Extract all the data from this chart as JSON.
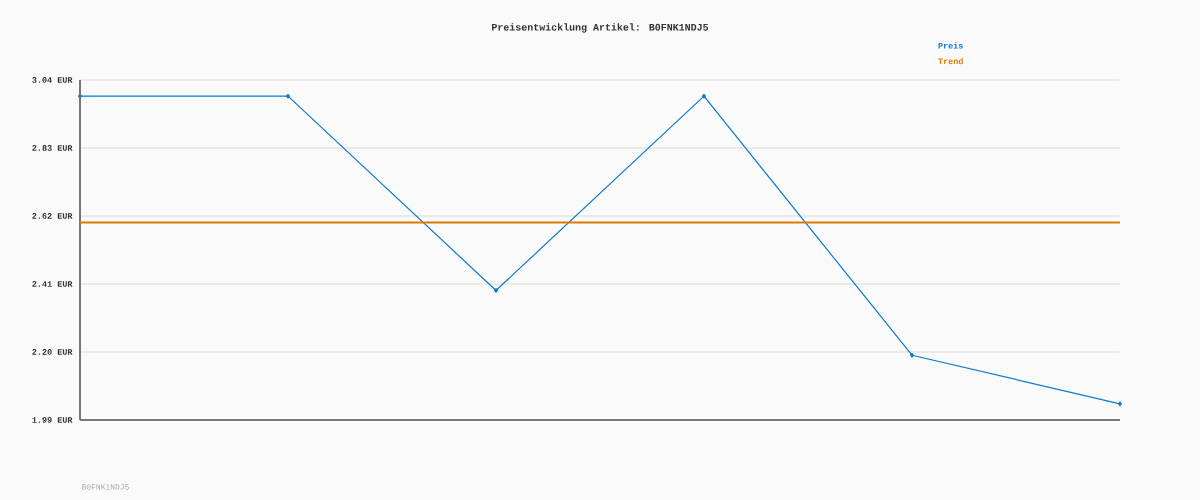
{
  "chart_data": {
    "type": "line",
    "title": "Preisentwicklung Artikel: B0FNK1NDJ5",
    "categories": [
      null,
      null,
      null,
      null,
      null,
      null
    ],
    "series": [
      {
        "name": "Preis",
        "color": "#0a7acc",
        "values": [
          2.99,
          2.99,
          2.39,
          2.99,
          2.19,
          2.04
        ],
        "marker": "diamond"
      },
      {
        "name": "Trend",
        "color": "#e07800",
        "values": [
          2.6,
          2.6,
          2.6,
          2.6,
          2.6,
          2.6
        ],
        "marker": "none"
      }
    ],
    "ylim": [
      1.99,
      3.04
    ],
    "yticks": [
      {
        "value": 1.99,
        "label": "1.99 EUR"
      },
      {
        "value": 2.2,
        "label": "2.20 EUR"
      },
      {
        "value": 2.41,
        "label": "2.41 EUR"
      },
      {
        "value": 2.62,
        "label": "2.62 EUR"
      },
      {
        "value": 2.83,
        "label": "2.83 EUR"
      },
      {
        "value": 3.04,
        "label": "3.04 EUR"
      }
    ],
    "grid": "y",
    "legend": "top right",
    "tick_labels": "y",
    "annotations": [
      "B0FNK1NDJ5"
    ]
  }
}
